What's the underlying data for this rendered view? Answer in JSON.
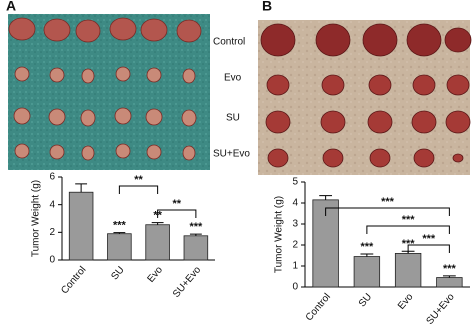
{
  "panels": [
    {
      "label": "A",
      "photo_labels": [
        "Control",
        "Evo",
        "SU",
        "SU+Evo"
      ]
    },
    {
      "label": "B"
    }
  ],
  "chart_data": [
    {
      "type": "bar",
      "ylabel": "Tumor Weight (g)",
      "categories": [
        "Control",
        "SU",
        "Evo",
        "SU+Evo"
      ],
      "values": [
        4.9,
        1.9,
        2.55,
        1.75
      ],
      "errors": [
        0.6,
        0.08,
        0.15,
        0.12
      ],
      "significance": [
        null,
        "***",
        "**",
        "***"
      ],
      "comparisons": [
        {
          "from": 1,
          "to": 2,
          "label": "**"
        },
        {
          "from": 2,
          "to": 3,
          "label": "**"
        }
      ],
      "color": "#9a9a9a",
      "ylim": [
        0,
        6
      ],
      "yticks": [
        0,
        2,
        4,
        6
      ]
    },
    {
      "type": "bar",
      "ylabel": "Tumor Weight (g)",
      "categories": [
        "Control",
        "SU",
        "Evo",
        "SU+Evo"
      ],
      "values": [
        4.15,
        1.45,
        1.6,
        0.45
      ],
      "errors": [
        0.2,
        0.12,
        0.1,
        0.08
      ],
      "significance": [
        null,
        "***",
        "***",
        "***"
      ],
      "comparisons": [
        {
          "from": 0,
          "to": 3,
          "label": "***"
        },
        {
          "from": 1,
          "to": 3,
          "label": "***"
        },
        {
          "from": 2,
          "to": 3,
          "label": "***"
        }
      ],
      "color": "#9a9a9a",
      "ylim": [
        0,
        5
      ],
      "yticks": [
        0,
        1,
        2,
        3,
        4,
        5
      ]
    }
  ]
}
